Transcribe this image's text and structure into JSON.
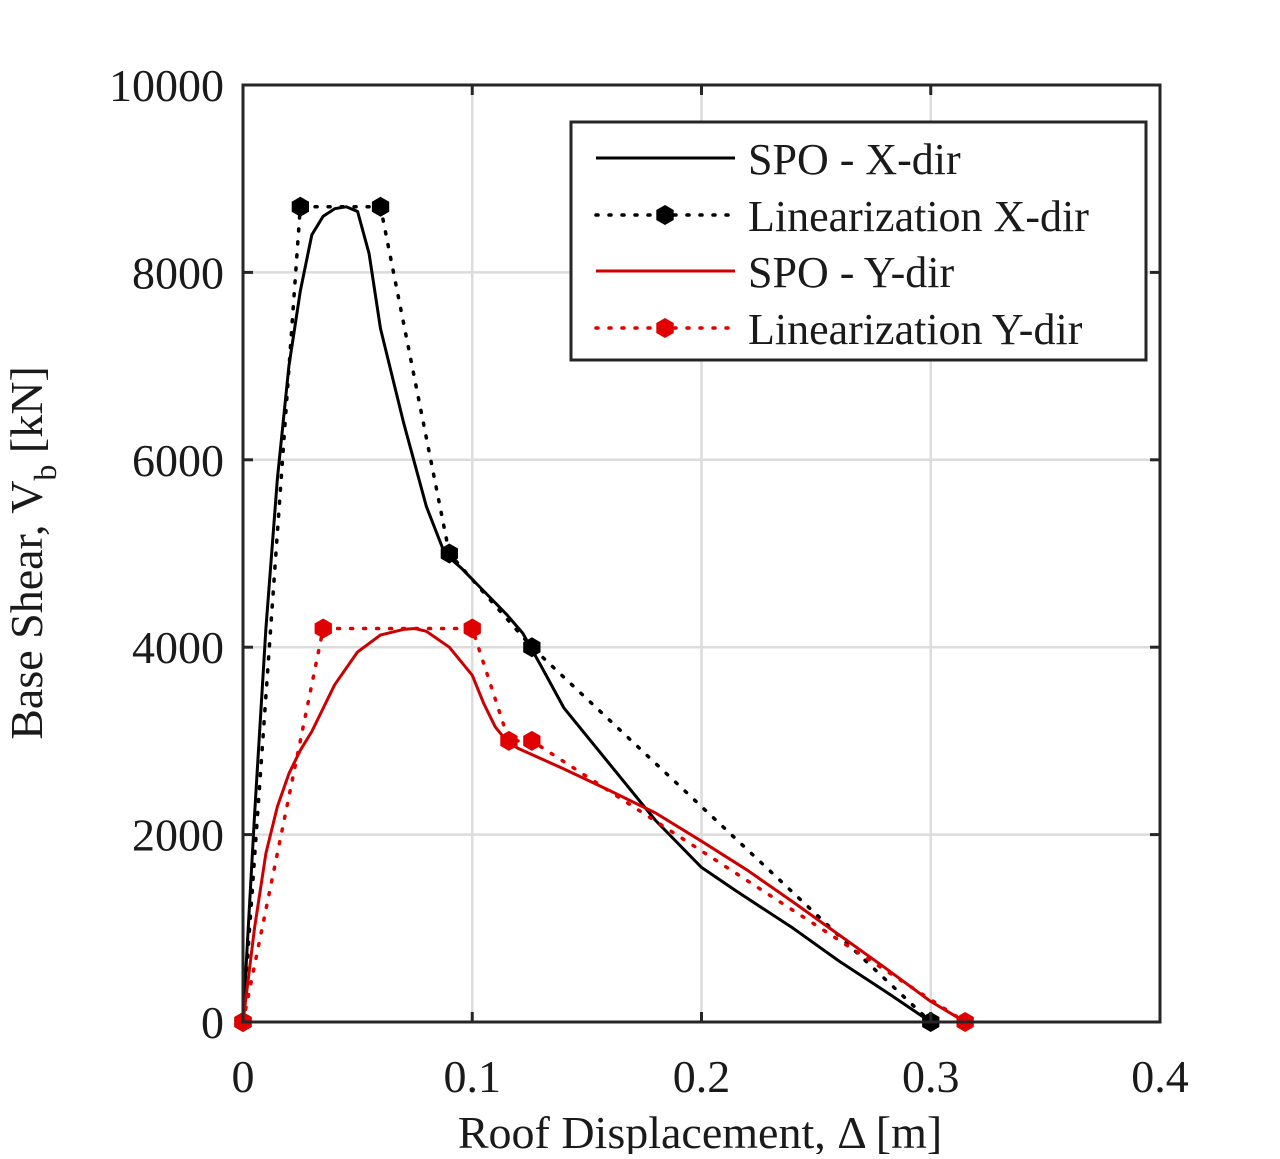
{
  "chart_data": {
    "type": "line",
    "xlabel": "Roof Displacement,   Δ [m]",
    "ylabel_main": "Base Shear,  V",
    "ylabel_sub": "b",
    "ylabel_unit": " [kN]",
    "xlim": [
      0,
      0.4
    ],
    "ylim": [
      0,
      10000
    ],
    "xticks": [
      0,
      0.1,
      0.2,
      0.3,
      0.4
    ],
    "xtick_labels": [
      "0",
      "0.1",
      "0.2",
      "0.3",
      "0.4"
    ],
    "yticks": [
      0,
      2000,
      4000,
      6000,
      8000,
      10000
    ],
    "ytick_labels": [
      "0",
      "2000",
      "4000",
      "6000",
      "8000",
      "10000"
    ],
    "grid": true,
    "legend_position": "top-right",
    "series": [
      {
        "name": "SPO - X-dir",
        "color": "#000000",
        "style": "solid",
        "x": [
          0,
          0.005,
          0.01,
          0.015,
          0.02,
          0.025,
          0.03,
          0.035,
          0.04,
          0.045,
          0.05,
          0.055,
          0.06,
          0.07,
          0.08,
          0.088,
          0.095,
          0.105,
          0.115,
          0.122,
          0.13,
          0.14,
          0.16,
          0.18,
          0.2,
          0.215,
          0.24,
          0.26,
          0.28,
          0.3
        ],
        "y": [
          0,
          2200,
          4200,
          5800,
          7000,
          7800,
          8400,
          8600,
          8680,
          8700,
          8650,
          8200,
          7400,
          6400,
          5500,
          5000,
          4850,
          4600,
          4350,
          4150,
          3800,
          3350,
          2750,
          2150,
          1650,
          1400,
          1000,
          650,
          330,
          0
        ]
      },
      {
        "name": "Linearization X-dir",
        "color": "#000000",
        "style": "dotted",
        "marker": "hexagon",
        "x": [
          0,
          0.025,
          0.06,
          0.09,
          0.126,
          0.3
        ],
        "y": [
          0,
          8700,
          8700,
          5000,
          4000,
          0
        ]
      },
      {
        "name": "SPO - Y-dir",
        "color": "#cc0000",
        "style": "solid",
        "x": [
          0,
          0.005,
          0.01,
          0.015,
          0.02,
          0.025,
          0.03,
          0.04,
          0.05,
          0.06,
          0.07,
          0.075,
          0.08,
          0.09,
          0.1,
          0.105,
          0.11,
          0.115,
          0.12,
          0.14,
          0.16,
          0.18,
          0.2,
          0.22,
          0.24,
          0.26,
          0.28,
          0.3,
          0.315
        ],
        "y": [
          0,
          1000,
          1800,
          2300,
          2650,
          2900,
          3100,
          3600,
          3950,
          4130,
          4190,
          4200,
          4170,
          4000,
          3700,
          3400,
          3150,
          3000,
          2920,
          2700,
          2470,
          2230,
          1930,
          1620,
          1280,
          930,
          580,
          220,
          0
        ]
      },
      {
        "name": "Linearization Y-dir",
        "color": "#e00000",
        "style": "dotted",
        "marker": "hexagon",
        "x": [
          0,
          0.035,
          0.1,
          0.116,
          0.126,
          0.315
        ],
        "y": [
          0,
          4200,
          4200,
          3000,
          3000,
          0
        ]
      }
    ]
  }
}
